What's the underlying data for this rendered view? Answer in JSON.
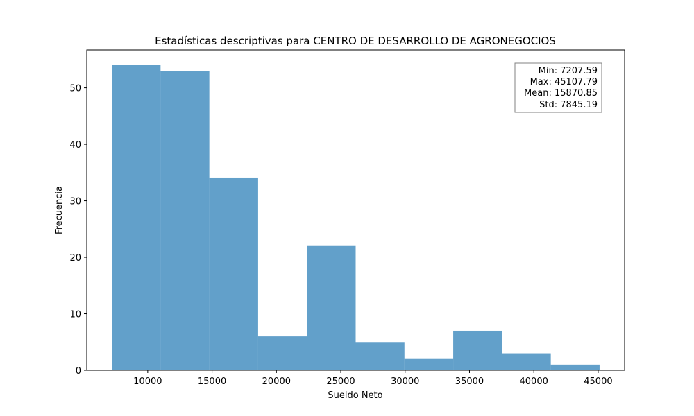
{
  "chart_data": {
    "type": "bar",
    "title": "Estadísticas descriptivas para CENTRO DE DESARROLLO DE AGRONEGOCIOS",
    "xlabel": "Sueldo Neto",
    "ylabel": "Frecuencia",
    "bin_edges": [
      7207.59,
      10997.61,
      14787.63,
      18577.65,
      22367.67,
      26157.69,
      29947.71,
      33737.73,
      37527.75,
      41317.77,
      45107.79
    ],
    "counts": [
      54,
      53,
      34,
      6,
      22,
      5,
      2,
      7,
      3,
      1
    ],
    "xlim": [
      5262.58,
      47052.8
    ],
    "ylim": [
      0,
      56.7
    ],
    "xticks": [
      10000,
      15000,
      20000,
      25000,
      30000,
      35000,
      40000,
      45000
    ],
    "yticks": [
      0,
      10,
      20,
      30,
      40,
      50
    ],
    "bar_color": "#1f77b4",
    "bar_alpha": 0.7,
    "grid": false,
    "stats_box": {
      "placement": "top-right",
      "lines": [
        "Min: 7207.59",
        "Max: 45107.79",
        "Mean: 15870.85",
        "Std: 7845.19"
      ]
    }
  }
}
